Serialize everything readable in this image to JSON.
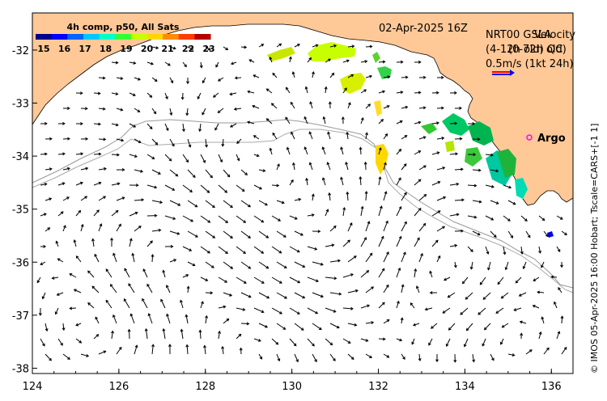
{
  "map": {
    "date_label": "02-Apr-2025 16Z",
    "source_label_a": "NRT00 GSLA",
    "source_label_b": "(4-12h old) QC",
    "source_label_c": "Velocity",
    "source_label_d": "(0-72h old)",
    "scale_label": "0.5m/s (1kt 24h)",
    "argo_label": "Argo",
    "credit": "© IMOS 05-Apr-2025 16:00 Hobart; Tscale=CARS+[-1 1]",
    "colorbar_title": "4h comp, p50, All Sats",
    "colorbar_ticks": [
      "15",
      "16",
      "17",
      "18",
      "19",
      "20",
      "21",
      "22",
      "23"
    ],
    "colorbar_colors": [
      "#00008b",
      "#0000ff",
      "#0064ff",
      "#00c8ff",
      "#00ffc8",
      "#32ff32",
      "#c8ff00",
      "#ffd700",
      "#ff8c00",
      "#ff3c00",
      "#b40000"
    ],
    "lon_ticks": [
      "124",
      "126",
      "128",
      "130",
      "132",
      "134",
      "136"
    ],
    "lat_ticks": [
      "-32",
      "-33",
      "-34",
      "-35",
      "-36",
      "-37",
      "-38"
    ],
    "land_color": "#ffc896",
    "ocean_color": "#ffffff"
  },
  "extent": {
    "lon_min": 124,
    "lon_max": 136.5,
    "lat_max": -31.3,
    "lat_min": -38.1
  }
}
